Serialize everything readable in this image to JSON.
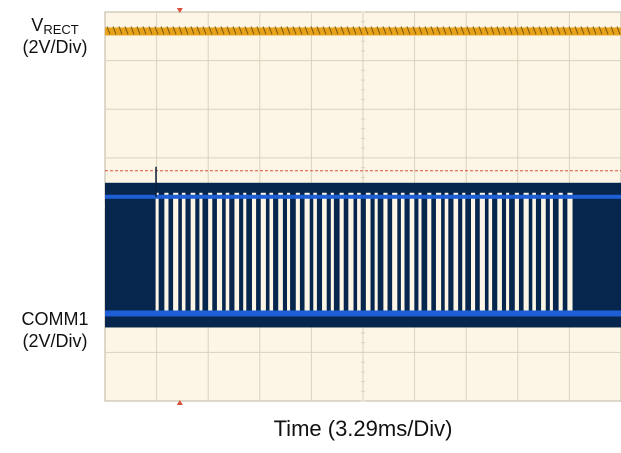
{
  "chart_data": {
    "type": "line",
    "title": "",
    "xlabel": "Time (3.29ms/Div)",
    "grid": true,
    "divisions": {
      "x": 10,
      "y": 8
    },
    "colors": {
      "background": "#fdf6e6",
      "grid": "#d9d2bf",
      "ch1": "#e8a21a",
      "ch2_fill": "#06264d",
      "ch2_level": "#1f5fd6",
      "trigger": "#d9503a"
    },
    "series": [
      {
        "name_main": "V",
        "name_sub": "RECT",
        "scale": "(2V/Div)",
        "level_div": 7.6
      },
      {
        "name": "COMM1",
        "scale": "(2V/Div)",
        "high_div": 4.2,
        "low_div": 1.8,
        "burst_start_div": 0.95,
        "burst_end_div": 9.1,
        "pulse_count": 48
      }
    ]
  }
}
